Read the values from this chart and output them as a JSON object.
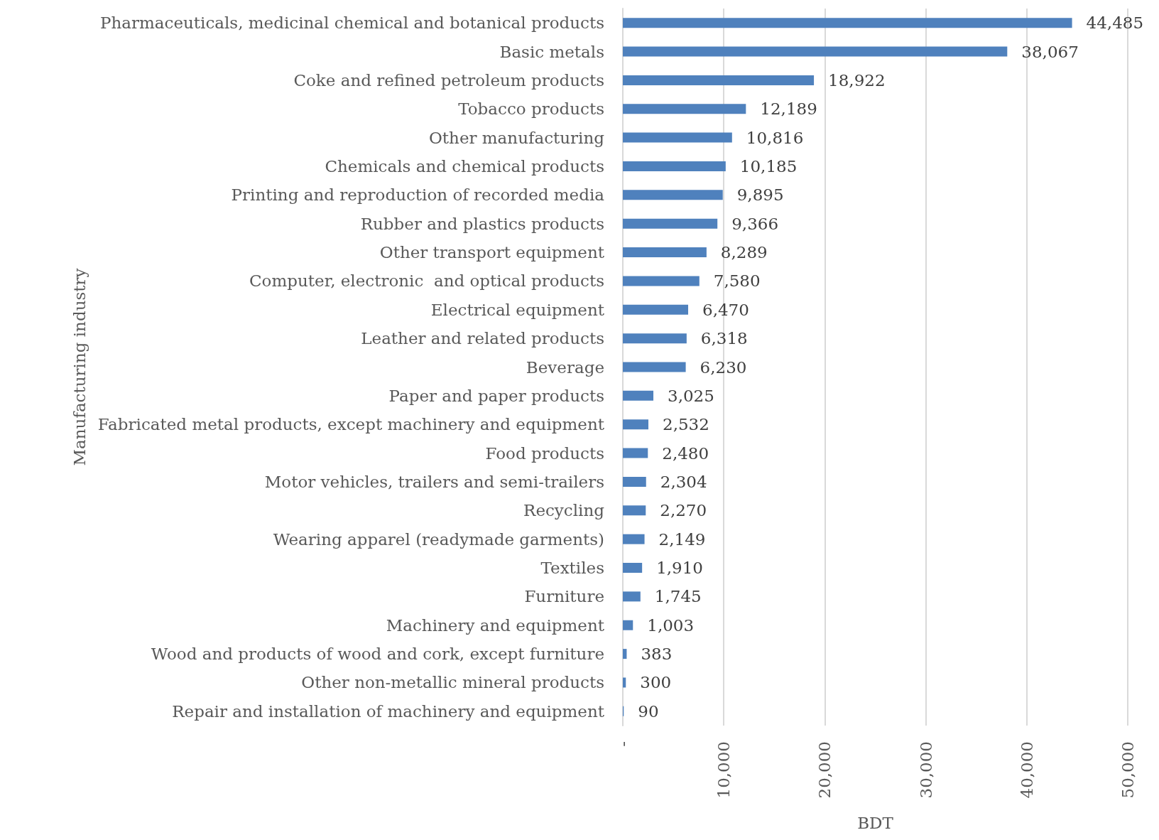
{
  "chart_data": {
    "type": "bar",
    "orientation": "horizontal",
    "xlabel": "BDT",
    "ylabel": "Manufacturing industry",
    "categories": [
      "Pharmaceuticals, medicinal chemical and botanical products",
      "Basic metals",
      "Coke and refined petroleum products",
      "Tobacco products",
      "Other manufacturing",
      "Chemicals and chemical products",
      "Printing and reproduction of recorded media",
      "Rubber and plastics products",
      "Other transport equipment",
      "Computer, electronic  and optical products",
      "Electrical equipment",
      "Leather and related products",
      "Beverage",
      "Paper and paper products",
      "Fabricated metal products, except machinery and equipment",
      "Food products",
      "Motor vehicles, trailers and semi-trailers",
      "Recycling",
      "Wearing apparel (readymade garments)",
      "Textiles",
      "Furniture",
      "Machinery and equipment",
      "Wood and products of wood and cork, except furniture",
      "Other non-metallic mineral products",
      "Repair and installation of machinery and equipment"
    ],
    "values": [
      44485,
      38067,
      18922,
      12189,
      10816,
      10185,
      9895,
      9366,
      8289,
      7580,
      6470,
      6318,
      6230,
      3025,
      2532,
      2480,
      2304,
      2270,
      2149,
      1910,
      1745,
      1003,
      383,
      300,
      90
    ],
    "value_labels": [
      "44,485",
      "38,067",
      "18,922",
      "12,189",
      "10,816",
      "10,185",
      "9,895",
      "9,366",
      "8,289",
      "7,580",
      "6,470",
      "6,318",
      "6,230",
      "3,025",
      "2,532",
      "2,480",
      "2,304",
      "2,270",
      "2,149",
      "1,910",
      "1,745",
      "1,003",
      "383",
      "300",
      "90"
    ],
    "color": "#4f81bd",
    "xlim": [
      0,
      50000
    ],
    "xticks": [
      {
        "value": 0,
        "label": "-"
      },
      {
        "value": 10000,
        "label": "10,000"
      },
      {
        "value": 20000,
        "label": "20,000"
      },
      {
        "value": 30000,
        "label": "30,000"
      },
      {
        "value": 40000,
        "label": "40,000"
      },
      {
        "value": 50000,
        "label": "50,000"
      }
    ],
    "grid": "x"
  }
}
